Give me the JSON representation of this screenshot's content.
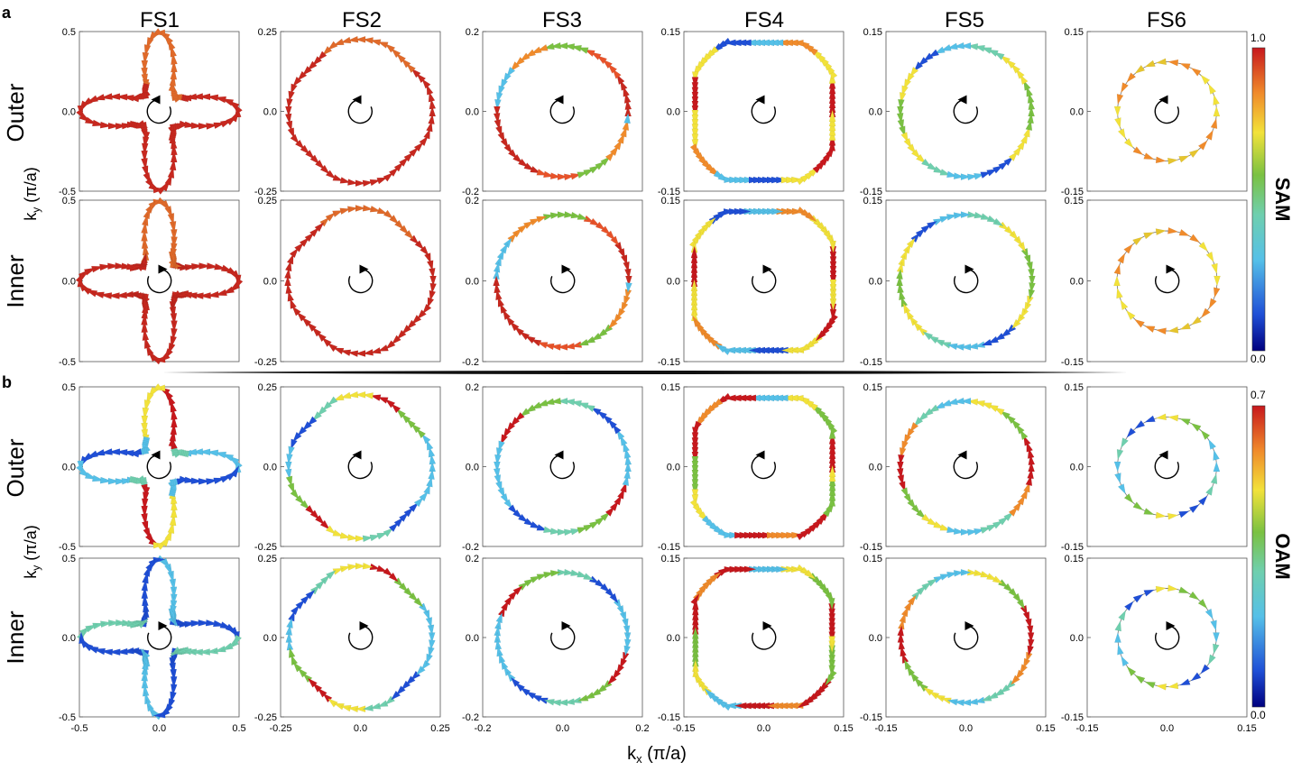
{
  "figure": {
    "panel_labels": [
      "a",
      "b"
    ],
    "column_headers": [
      "FS1",
      "FS2",
      "FS3",
      "FS4",
      "FS5",
      "FS6"
    ],
    "row_labels": [
      "Outer",
      "Inner",
      "Outer",
      "Inner"
    ],
    "y_axis_label": "k",
    "y_axis_subscript": "y",
    "y_axis_unit": " (π/a)",
    "x_axis_label": "k",
    "x_axis_subscript": "x",
    "x_axis_unit": " (π/a)",
    "colorbar_a": {
      "label": "SAM",
      "max_label": "1.0",
      "min_label": "0.0"
    },
    "colorbar_b": {
      "label": "OAM",
      "max_label": "0.7",
      "min_label": "0.0"
    }
  },
  "chart_data": {
    "type": "vector-field",
    "panels": [
      "a (SAM)",
      "b (OAM)"
    ],
    "columns": [
      {
        "name": "FS1",
        "range": [
          -0.5,
          0.5
        ],
        "ticks": [
          "-0.5",
          "0.0",
          "0.5"
        ],
        "shape": "cross"
      },
      {
        "name": "FS2",
        "range": [
          -0.25,
          0.25
        ],
        "ticks": [
          "-0.25",
          "0.0",
          "0.25"
        ],
        "shape": "rounded-square"
      },
      {
        "name": "FS3",
        "range": [
          -0.2,
          0.2
        ],
        "ticks": [
          "-0.2",
          "0.0",
          "0.2"
        ],
        "shape": "circle"
      },
      {
        "name": "FS4",
        "range": [
          -0.15,
          0.15
        ],
        "ticks": [
          "-0.15",
          "0.0",
          "0.15"
        ],
        "shape": "square"
      },
      {
        "name": "FS5",
        "range": [
          -0.15,
          0.15
        ],
        "ticks": [
          "-0.15",
          "0.0",
          "0.15"
        ],
        "shape": "circle"
      },
      {
        "name": "FS6",
        "range": [
          -0.15,
          0.15
        ],
        "ticks": [
          "-0.15",
          "0.0",
          "0.15"
        ],
        "shape": "small-circle"
      }
    ],
    "x_tick_labels_bottom": [
      "-0.5",
      "0.0",
      "0.5",
      "-0.25",
      "0.0",
      "0.25",
      "-0.2",
      "0.0",
      "0.2",
      "-0.15",
      "0.0",
      "0.15",
      "-0.15",
      "0.0",
      "0.15",
      "-0.15",
      "0.0",
      "0.15"
    ],
    "colorbar_sam_range": [
      0.0,
      1.0
    ],
    "colorbar_oam_range": [
      0.0,
      0.7
    ]
  }
}
